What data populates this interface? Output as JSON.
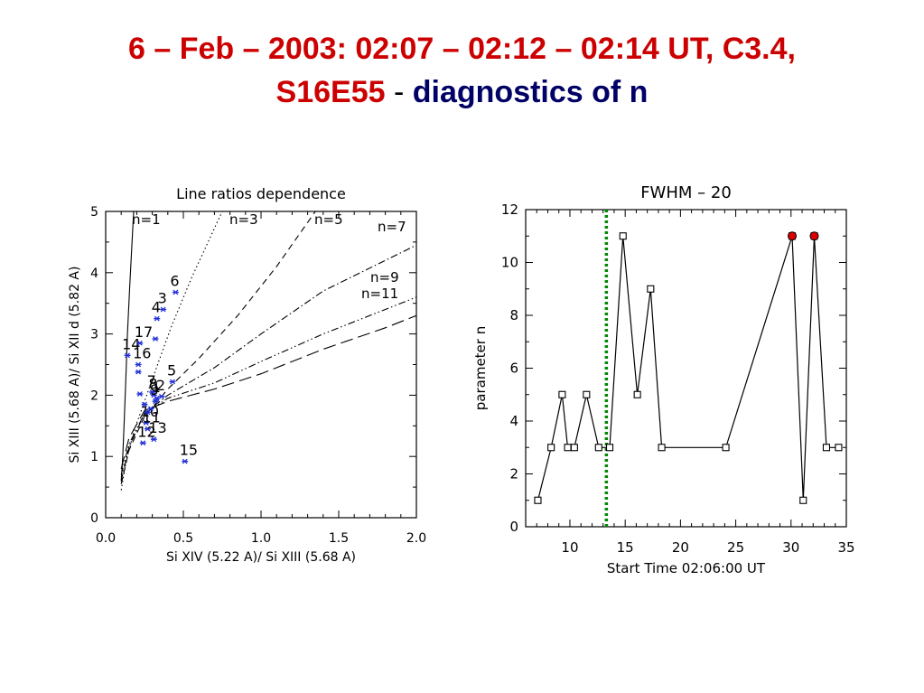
{
  "slide": {
    "title_line1": "6 – Feb – 2003: 02:07 – 02:12 – 02:14 UT, C3.4,",
    "title_line2_a": "S16E55",
    "title_line2_sep": " - ",
    "title_line2_b": "diagnostics of n"
  },
  "colors": {
    "title_red": "#cc0000",
    "title_navy": "#000066",
    "marker_blue": "#1f2ed8",
    "vline_green": "#008800",
    "highlight_red": "#dd0000"
  },
  "chart_data": [
    {
      "type": "scatter",
      "title": "Line ratios dependence",
      "xlabel": "Si XIV (5.22 A)/ Si XIII (5.68 A)",
      "ylabel": "Si XIII (5.68 A)/ Si XII d (5.82 A)",
      "xlim": [
        0.0,
        2.0
      ],
      "ylim": [
        0,
        5
      ],
      "xticks": [
        "0.0",
        "0.5",
        "1.0",
        "1.5",
        "2.0"
      ],
      "yticks": [
        "0",
        "1",
        "2",
        "3",
        "4",
        "5"
      ],
      "curves": [
        {
          "label": "n=1",
          "style": "solid",
          "points": [
            [
              0.1,
              0.6
            ],
            [
              0.11,
              1.0
            ],
            [
              0.12,
              1.6
            ],
            [
              0.13,
              2.3
            ],
            [
              0.14,
              3.0
            ],
            [
              0.155,
              3.8
            ],
            [
              0.17,
              4.5
            ],
            [
              0.18,
              5.0
            ]
          ]
        },
        {
          "label": "n=3",
          "style": "dotted",
          "points": [
            [
              0.1,
              0.45
            ],
            [
              0.13,
              0.9
            ],
            [
              0.18,
              1.4
            ],
            [
              0.25,
              1.9
            ],
            [
              0.32,
              2.4
            ],
            [
              0.42,
              3.1
            ],
            [
              0.55,
              3.9
            ],
            [
              0.75,
              5.0
            ]
          ]
        },
        {
          "label": "n=5",
          "style": "dashed",
          "points": [
            [
              0.1,
              0.55
            ],
            [
              0.15,
              1.1
            ],
            [
              0.25,
              1.65
            ],
            [
              0.4,
              2.1
            ],
            [
              0.6,
              2.6
            ],
            [
              0.85,
              3.3
            ],
            [
              1.1,
              4.1
            ],
            [
              1.35,
              5.0
            ]
          ]
        },
        {
          "label": "n=7",
          "style": "dashdot",
          "points": [
            [
              0.1,
              0.6
            ],
            [
              0.15,
              1.15
            ],
            [
              0.25,
              1.7
            ],
            [
              0.4,
              2.0
            ],
            [
              0.7,
              2.45
            ],
            [
              1.0,
              3.0
            ],
            [
              1.4,
              3.7
            ],
            [
              1.8,
              4.2
            ],
            [
              2.0,
              4.45
            ]
          ]
        },
        {
          "label": "n=9",
          "style": "dashdotdot",
          "points": [
            [
              0.1,
              0.7
            ],
            [
              0.15,
              1.2
            ],
            [
              0.25,
              1.7
            ],
            [
              0.4,
              1.95
            ],
            [
              0.7,
              2.2
            ],
            [
              1.0,
              2.55
            ],
            [
              1.4,
              3.0
            ],
            [
              1.8,
              3.4
            ],
            [
              2.0,
              3.6
            ]
          ]
        },
        {
          "label": "n=11",
          "style": "longdash",
          "points": [
            [
              0.1,
              0.8
            ],
            [
              0.15,
              1.3
            ],
            [
              0.25,
              1.75
            ],
            [
              0.4,
              1.9
            ],
            [
              0.7,
              2.1
            ],
            [
              1.0,
              2.35
            ],
            [
              1.4,
              2.75
            ],
            [
              1.8,
              3.1
            ],
            [
              2.0,
              3.3
            ]
          ]
        }
      ],
      "points": [
        {
          "label": "1",
          "x": 0.33,
          "y": 1.95
        },
        {
          "label": "2",
          "x": 0.36,
          "y": 1.98
        },
        {
          "label": "3",
          "x": 0.37,
          "y": 3.4
        },
        {
          "label": "4",
          "x": 0.33,
          "y": 3.25
        },
        {
          "label": "5",
          "x": 0.43,
          "y": 2.22
        },
        {
          "label": "6",
          "x": 0.45,
          "y": 3.68
        },
        {
          "label": "7",
          "x": 0.3,
          "y": 2.05
        },
        {
          "label": "8",
          "x": 0.31,
          "y": 2.0
        },
        {
          "label": "9",
          "x": 0.32,
          "y": 1.9
        },
        {
          "label": "10",
          "x": 0.26,
          "y": 1.55
        },
        {
          "label": "11",
          "x": 0.27,
          "y": 1.45
        },
        {
          "label": "12",
          "x": 0.24,
          "y": 1.22
        },
        {
          "label": "13",
          "x": 0.31,
          "y": 1.28
        },
        {
          "label": "14",
          "x": 0.14,
          "y": 2.65
        },
        {
          "label": "15",
          "x": 0.51,
          "y": 0.92
        },
        {
          "label": "16",
          "x": 0.21,
          "y": 2.5
        },
        {
          "label": "17",
          "x": 0.22,
          "y": 2.85
        },
        {
          "label": "",
          "x": 0.32,
          "y": 2.92
        },
        {
          "label": "",
          "x": 0.21,
          "y": 2.38
        },
        {
          "label": "",
          "x": 0.22,
          "y": 2.02
        },
        {
          "label": "",
          "x": 0.25,
          "y": 1.85
        },
        {
          "label": "",
          "x": 0.27,
          "y": 1.72
        },
        {
          "label": "",
          "x": 0.29,
          "y": 1.78
        }
      ]
    },
    {
      "type": "line",
      "title": "FWHM  –  20",
      "xlabel": "Start Time 02:06:00 UT",
      "ylabel": "parameter n",
      "xlim": [
        6,
        35
      ],
      "ylim": [
        0,
        12
      ],
      "xticks": [
        "10",
        "15",
        "20",
        "25",
        "30",
        "35"
      ],
      "yticks": [
        "0",
        "2",
        "4",
        "6",
        "8",
        "10",
        "12"
      ],
      "vertical_line_x": 13.3,
      "series": [
        {
          "x": [
            7.1,
            8.3,
            9.3,
            9.8,
            10.4,
            11.5,
            12.6,
            13.6,
            14.8,
            16.1,
            17.3,
            18.3,
            24.1,
            30.1,
            31.1,
            32.1,
            33.2,
            34.3
          ],
          "y": [
            1,
            3,
            5,
            3,
            3,
            5,
            3,
            3,
            11,
            5,
            9,
            3,
            3,
            11,
            1,
            11,
            3,
            3
          ]
        }
      ],
      "highlighted_points": [
        [
          30.1,
          11
        ],
        [
          32.1,
          11
        ]
      ]
    }
  ]
}
